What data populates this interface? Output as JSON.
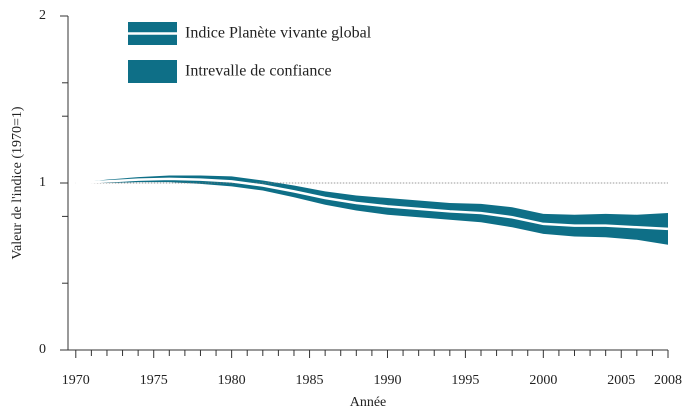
{
  "chart_data": {
    "type": "line",
    "x": [
      1970,
      1972,
      1974,
      1976,
      1978,
      1980,
      1982,
      1984,
      1986,
      1988,
      1990,
      1992,
      1994,
      1996,
      1998,
      2000,
      2002,
      2004,
      2006,
      2008
    ],
    "series": [
      {
        "name": "Indice Planète vivante global",
        "color": "#ffffff",
        "values": [
          1.0,
          1.01,
          1.02,
          1.025,
          1.02,
          1.01,
          0.985,
          0.95,
          0.91,
          0.88,
          0.86,
          0.845,
          0.83,
          0.82,
          0.795,
          0.755,
          0.745,
          0.745,
          0.735,
          0.725
        ]
      }
    ],
    "band": {
      "name": "Intrevalle de confiance",
      "color": "#0e6f87",
      "upper": [
        1.0,
        1.02,
        1.035,
        1.045,
        1.045,
        1.04,
        1.015,
        0.985,
        0.95,
        0.925,
        0.91,
        0.895,
        0.88,
        0.875,
        0.855,
        0.815,
        0.81,
        0.815,
        0.81,
        0.82
      ],
      "lower": [
        1.0,
        1.0,
        1.005,
        1.005,
        0.995,
        0.98,
        0.955,
        0.915,
        0.87,
        0.835,
        0.81,
        0.795,
        0.78,
        0.765,
        0.735,
        0.695,
        0.68,
        0.675,
        0.66,
        0.63
      ]
    },
    "reference_line": 1,
    "xlabel": "Année",
    "ylabel": "Valeur de l'indice (1970=1)",
    "xlim": [
      1969.5,
      2008
    ],
    "xticks": [
      1970,
      1975,
      1980,
      1985,
      1990,
      1995,
      2000,
      2005,
      2008
    ],
    "xminorticks": [
      1971,
      1972,
      1973,
      1974,
      1976,
      1977,
      1978,
      1979,
      1981,
      1982,
      1983,
      1984,
      1986,
      1987,
      1988,
      1989,
      1991,
      1992,
      1993,
      1994,
      1996,
      1997,
      1998,
      1999,
      2001,
      2002,
      2003,
      2004,
      2006,
      2007
    ],
    "ylim": [
      0,
      2
    ],
    "yticks": [
      0,
      1,
      2
    ],
    "yminorticks": [
      0.4,
      0.8,
      1.4,
      1.6
    ],
    "legend": "upper-left"
  }
}
